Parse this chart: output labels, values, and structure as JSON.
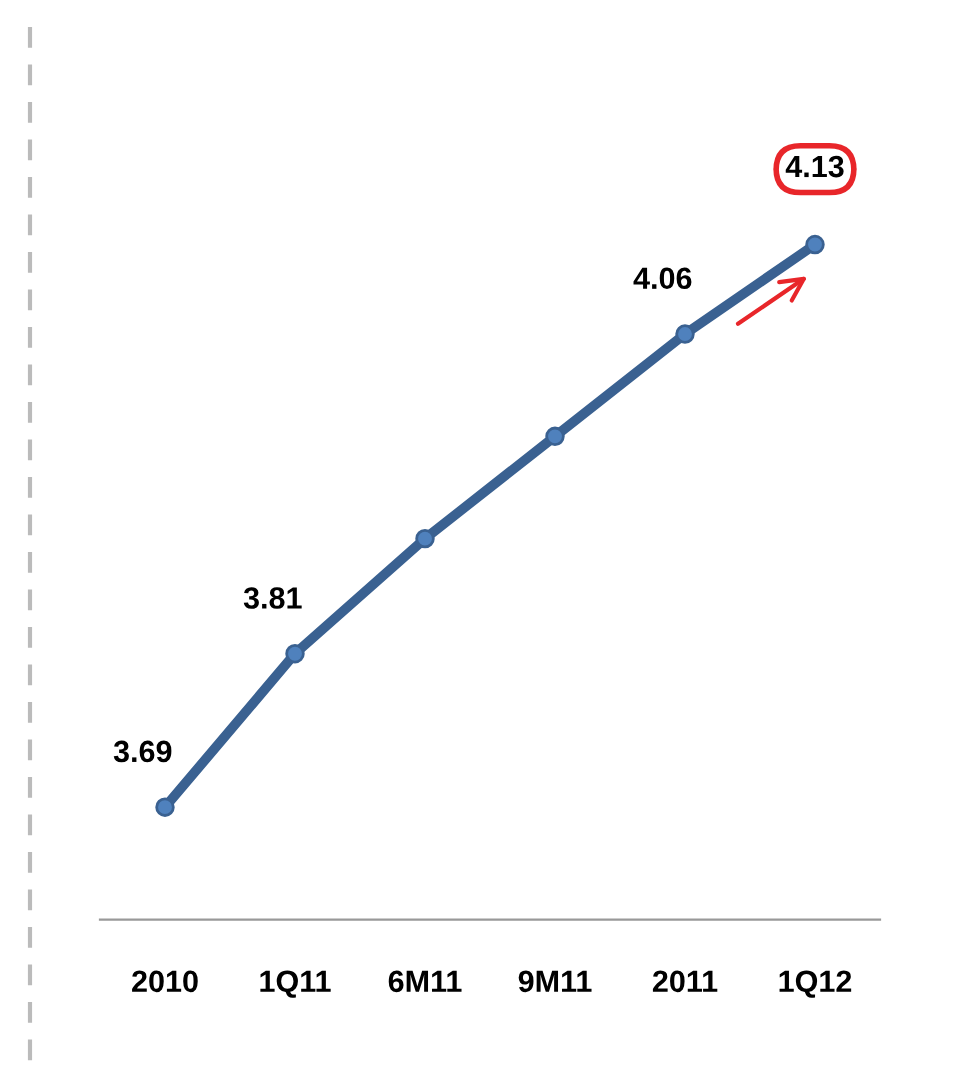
{
  "chart_data": {
    "type": "line",
    "categories": [
      "2010",
      "1Q11",
      "6M11",
      "9M11",
      "2011",
      "1Q12"
    ],
    "series": [
      {
        "color": "#3a6191",
        "values": [
          3.69,
          3.81,
          3.9,
          3.98,
          4.06,
          4.13
        ],
        "value_labels": [
          "3.69",
          "3.81",
          null,
          null,
          "4.06",
          "4.13"
        ]
      }
    ],
    "marker": "circle",
    "line_style": "solid",
    "grid": false,
    "legend": false
  }
}
